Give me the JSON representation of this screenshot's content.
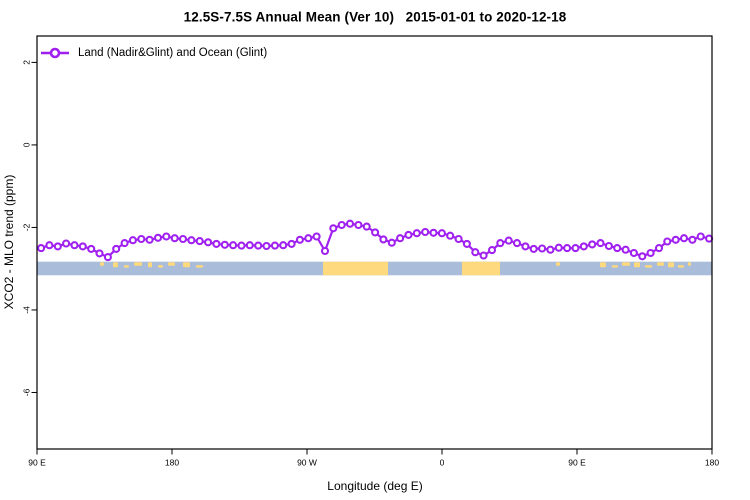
{
  "title": "12.5S-7.5S Annual Mean (Ver 10)   2015-01-01 to 2020-12-18",
  "legend": {
    "label": "Land (Nadir&Glint) and Ocean (Glint)"
  },
  "axes": {
    "x": {
      "label": "Longitude (deg E)"
    },
    "y": {
      "label": "XCO2 - MLO trend (ppm)"
    }
  },
  "colors": {
    "series": "#A020F0",
    "marker_fill": "#ffffff",
    "ocean": "#A9BCD9",
    "land": "#FFD97E",
    "frame": "#000000",
    "text": "#000000"
  },
  "chart_data": {
    "type": "line",
    "title": "12.5S-7.5S Annual Mean (Ver 10)   2015-01-01 to 2020-12-18",
    "xlabel": "Longitude (deg E)",
    "ylabel": "XCO2 - MLO trend (ppm)",
    "xlim": [
      90,
      540
    ],
    "ylim": [
      -7.37,
      2.64
    ],
    "x_ticks": [
      90,
      180,
      270,
      360,
      450,
      540
    ],
    "x_tick_labels": [
      "90 E",
      "180",
      "90 W",
      "0",
      "90 E",
      "180"
    ],
    "y_ticks": [
      2,
      0,
      -2,
      -4,
      -6
    ],
    "y_tick_labels": [
      "2",
      "0",
      "-2",
      "-4",
      "-6"
    ],
    "grid": false,
    "legend_position": "top-left",
    "series": [
      {
        "name": "Land (Nadir&Glint) and Ocean (Glint)",
        "x_start_lon": 92.7,
        "x_step_lon": 5.5667,
        "values": [
          -2.5,
          -2.43,
          -2.46,
          -2.39,
          -2.43,
          -2.46,
          -2.52,
          -2.63,
          -2.72,
          -2.52,
          -2.38,
          -2.31,
          -2.28,
          -2.3,
          -2.25,
          -2.22,
          -2.26,
          -2.28,
          -2.31,
          -2.33,
          -2.36,
          -2.4,
          -2.42,
          -2.43,
          -2.44,
          -2.43,
          -2.44,
          -2.45,
          -2.44,
          -2.43,
          -2.4,
          -2.3,
          -2.26,
          -2.22,
          -2.57,
          -2.02,
          -1.94,
          -1.91,
          -1.94,
          -1.98,
          -2.12,
          -2.29,
          -2.37,
          -2.26,
          -2.18,
          -2.14,
          -2.11,
          -2.13,
          -2.14,
          -2.2,
          -2.28,
          -2.4,
          -2.6,
          -2.68,
          -2.55,
          -2.38,
          -2.32,
          -2.38,
          -2.46,
          -2.52,
          -2.51,
          -2.54,
          -2.49,
          -2.5,
          -2.5,
          -2.46,
          -2.41,
          -2.38,
          -2.45,
          -2.5,
          -2.54,
          -2.62,
          -2.7,
          -2.62,
          -2.5,
          -2.34,
          -2.3,
          -2.26,
          -2.3,
          -2.22,
          -2.27
        ]
      }
    ],
    "map_strip": {
      "description": "land/ocean band along latitude strip",
      "y_top": -2.83,
      "y_bottom": -3.16,
      "land_segments_lon": [
        [
          280.7,
          324.0
        ],
        [
          373.3,
          398.7
        ]
      ],
      "island_specks_lon": [
        [
          132.0,
          134.7
        ],
        [
          140.7,
          144.0
        ],
        [
          148.0,
          151.3
        ],
        [
          154.7,
          160.0
        ],
        [
          164.0,
          166.7
        ],
        [
          170.7,
          174.0
        ],
        [
          177.3,
          182.0
        ],
        [
          187.3,
          192.0
        ],
        [
          196.0,
          200.7
        ],
        [
          436.0,
          438.7
        ],
        [
          465.3,
          469.3
        ],
        [
          473.3,
          477.3
        ],
        [
          480.0,
          485.3
        ],
        [
          488.0,
          492.0
        ],
        [
          495.3,
          500.0
        ],
        [
          503.3,
          508.0
        ],
        [
          510.7,
          514.7
        ],
        [
          517.3,
          521.3
        ],
        [
          524.0,
          526.0
        ]
      ]
    }
  }
}
